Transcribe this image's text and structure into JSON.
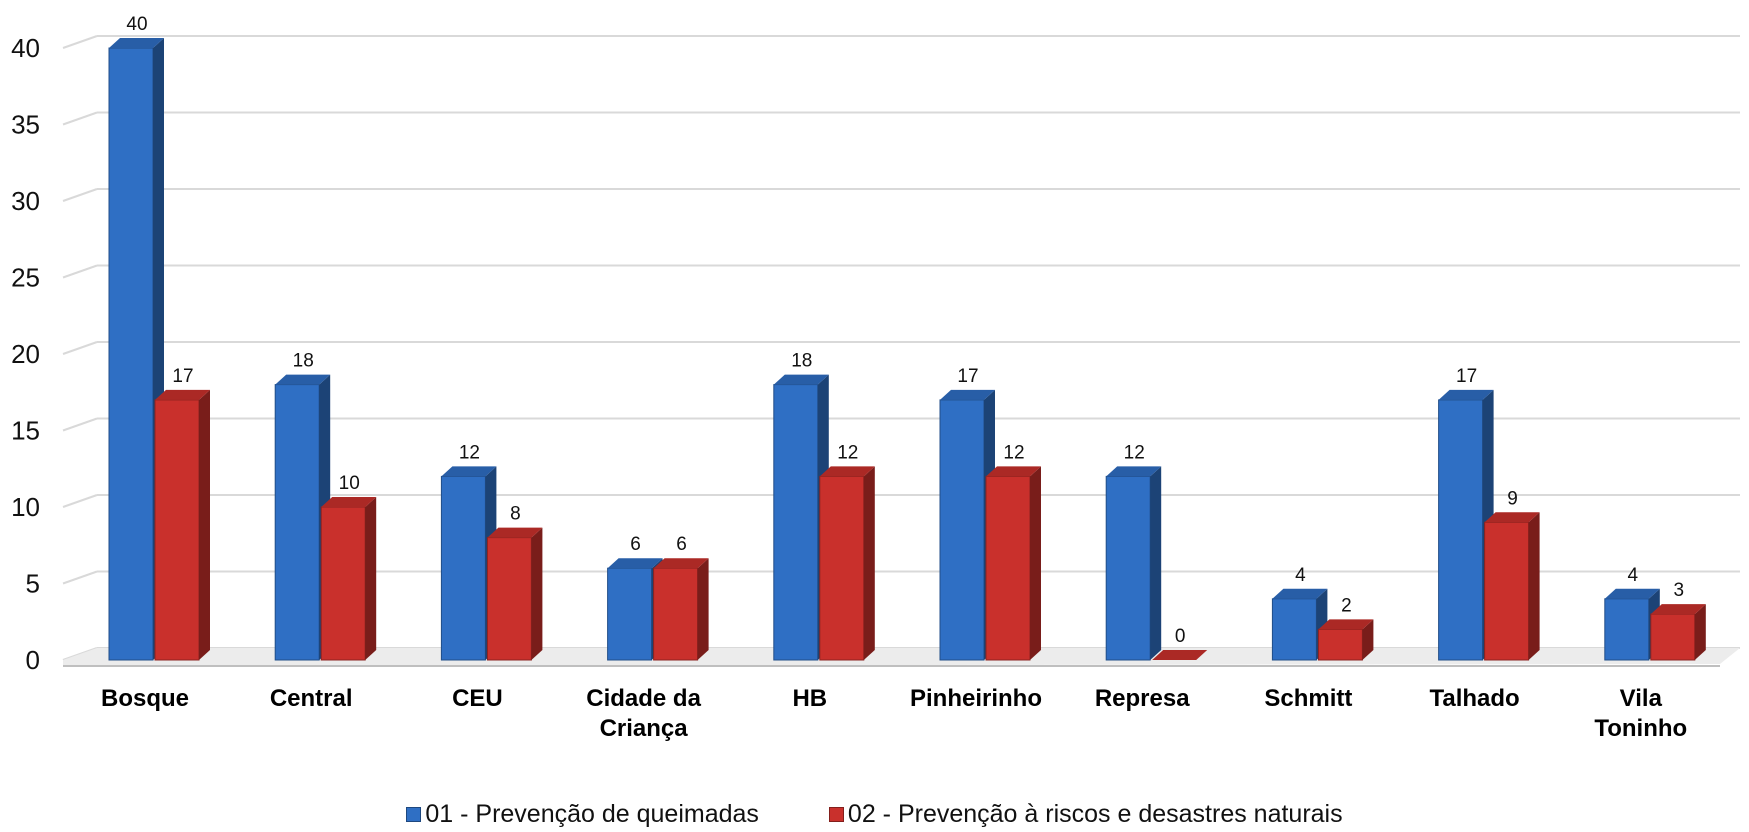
{
  "chart_data": {
    "type": "bar",
    "style": "3d-clustered-column",
    "categories": [
      [
        "Bosque"
      ],
      [
        "Central"
      ],
      [
        "CEU"
      ],
      [
        "Cidade da",
        "Criança"
      ],
      [
        "HB"
      ],
      [
        "Pinheirinho"
      ],
      [
        "Represa"
      ],
      [
        "Schmitt"
      ],
      [
        "Talhado"
      ],
      [
        "Vila",
        "Toninho"
      ]
    ],
    "series": [
      {
        "name": "01 - Prevenção de queimadas",
        "color": "#2f6fc4",
        "values": [
          40,
          18,
          12,
          6,
          18,
          17,
          12,
          4,
          17,
          4
        ]
      },
      {
        "name": "02 - Prevenção à riscos e desastres naturais",
        "color": "#c9302c",
        "values": [
          17,
          10,
          8,
          6,
          12,
          12,
          0,
          2,
          9,
          3
        ]
      }
    ],
    "ylim": [
      0,
      40
    ],
    "yticks": [
      0,
      5,
      10,
      15,
      20,
      25,
      30,
      35,
      40
    ],
    "grid": true,
    "legend_position": "bottom",
    "data_labels": true
  }
}
